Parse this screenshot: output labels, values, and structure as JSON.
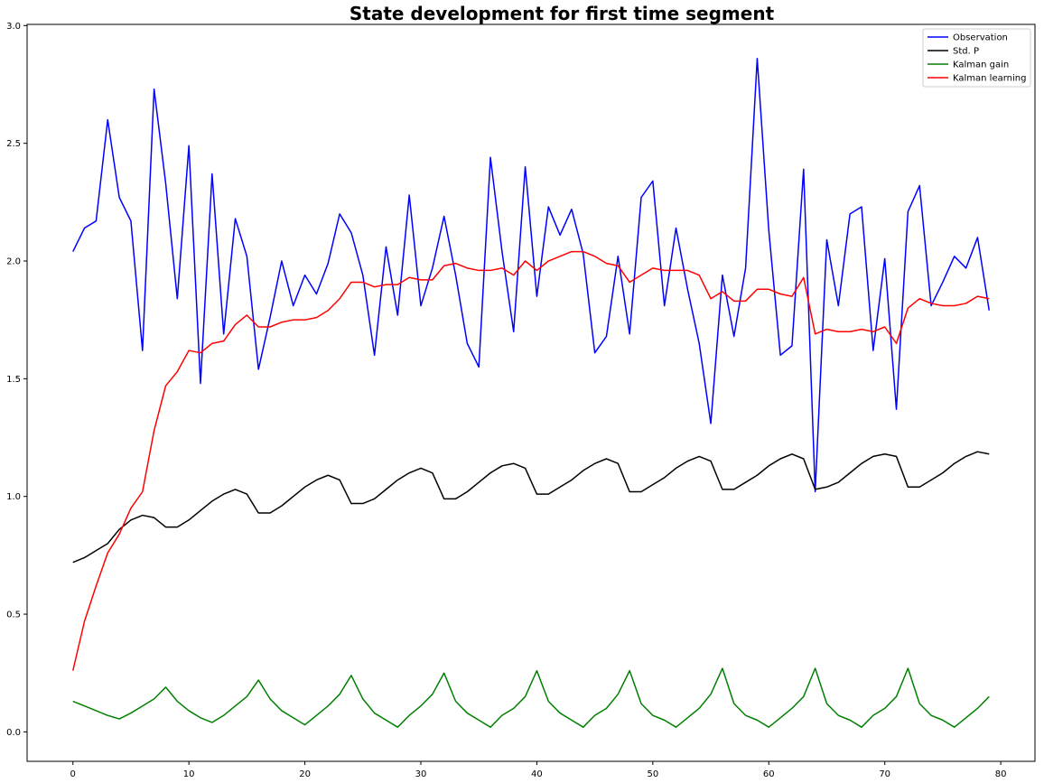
{
  "chart_data": {
    "type": "line",
    "title": "State development for first time segment",
    "xlabel": "",
    "ylabel": "",
    "xlim": [
      -3.95,
      82.95
    ],
    "ylim": [
      -0.125,
      3.005
    ],
    "x_ticks": [
      0,
      10,
      20,
      30,
      40,
      50,
      60,
      70,
      80
    ],
    "x_tick_labels": [
      "0",
      "10",
      "20",
      "30",
      "40",
      "50",
      "60",
      "70",
      "80"
    ],
    "y_ticks": [
      0.0,
      0.5,
      1.0,
      1.5,
      2.0,
      2.5,
      3.0
    ],
    "y_tick_labels": [
      "0.0",
      "0.5",
      "1.0",
      "1.5",
      "2.0",
      "2.5",
      "3.0"
    ],
    "grid": false,
    "legend": {
      "position": "top-right"
    },
    "x": [
      0,
      1,
      2,
      3,
      4,
      5,
      6,
      7,
      8,
      9,
      10,
      11,
      12,
      13,
      14,
      15,
      16,
      17,
      18,
      19,
      20,
      21,
      22,
      23,
      24,
      25,
      26,
      27,
      28,
      29,
      30,
      31,
      32,
      33,
      34,
      35,
      36,
      37,
      38,
      39,
      40,
      41,
      42,
      43,
      44,
      45,
      46,
      47,
      48,
      49,
      50,
      51,
      52,
      53,
      54,
      55,
      56,
      57,
      58,
      59,
      60,
      61,
      62,
      63,
      64,
      65,
      66,
      67,
      68,
      69,
      70,
      71,
      72,
      73,
      74,
      75,
      76,
      77,
      78,
      79
    ],
    "series": [
      {
        "name": "Observation",
        "color": "#0000ff",
        "values": [
          2.04,
          2.14,
          2.17,
          2.6,
          2.27,
          2.17,
          1.62,
          2.73,
          2.33,
          1.84,
          2.49,
          1.48,
          2.37,
          1.69,
          2.18,
          2.02,
          1.54,
          1.76,
          2.0,
          1.81,
          1.94,
          1.86,
          1.99,
          2.2,
          2.12,
          1.94,
          1.6,
          2.06,
          1.77,
          2.28,
          1.81,
          1.97,
          2.19,
          1.94,
          1.65,
          1.55,
          2.44,
          2.04,
          1.7,
          2.4,
          1.85,
          2.23,
          2.11,
          2.22,
          2.03,
          1.61,
          1.68,
          2.02,
          1.69,
          2.27,
          2.34,
          1.81,
          2.14,
          1.88,
          1.65,
          1.31,
          1.94,
          1.68,
          1.97,
          2.86,
          2.13,
          1.6,
          1.64,
          2.39,
          1.02,
          2.09,
          1.81,
          2.2,
          2.23,
          1.62,
          2.01,
          1.37,
          2.21,
          2.32,
          1.81,
          1.91,
          2.02,
          1.97,
          2.1,
          1.79
        ]
      },
      {
        "name": "Std. P",
        "color": "#000000",
        "values": [
          0.72,
          0.74,
          0.77,
          0.8,
          0.86,
          0.9,
          0.92,
          0.91,
          0.87,
          0.87,
          0.9,
          0.94,
          0.98,
          1.01,
          1.03,
          1.01,
          0.93,
          0.93,
          0.96,
          1.0,
          1.04,
          1.07,
          1.09,
          1.07,
          0.97,
          0.97,
          0.99,
          1.03,
          1.07,
          1.1,
          1.12,
          1.1,
          0.99,
          0.99,
          1.02,
          1.06,
          1.1,
          1.13,
          1.14,
          1.12,
          1.01,
          1.01,
          1.04,
          1.07,
          1.11,
          1.14,
          1.16,
          1.14,
          1.02,
          1.02,
          1.05,
          1.08,
          1.12,
          1.15,
          1.17,
          1.15,
          1.03,
          1.03,
          1.06,
          1.09,
          1.13,
          1.16,
          1.18,
          1.16,
          1.03,
          1.04,
          1.06,
          1.1,
          1.14,
          1.17,
          1.18,
          1.17,
          1.04,
          1.04,
          1.07,
          1.1,
          1.14,
          1.17,
          1.19,
          1.18
        ]
      },
      {
        "name": "Kalman gain",
        "color": "#008000",
        "values": [
          0.13,
          0.11,
          0.09,
          0.07,
          0.055,
          0.08,
          0.11,
          0.14,
          0.19,
          0.13,
          0.09,
          0.06,
          0.04,
          0.07,
          0.11,
          0.15,
          0.22,
          0.14,
          0.09,
          0.06,
          0.03,
          0.07,
          0.11,
          0.16,
          0.24,
          0.14,
          0.08,
          0.05,
          0.02,
          0.07,
          0.11,
          0.16,
          0.25,
          0.13,
          0.08,
          0.05,
          0.02,
          0.07,
          0.1,
          0.15,
          0.26,
          0.13,
          0.08,
          0.05,
          0.02,
          0.07,
          0.1,
          0.16,
          0.26,
          0.12,
          0.07,
          0.05,
          0.02,
          0.06,
          0.1,
          0.16,
          0.27,
          0.12,
          0.07,
          0.05,
          0.02,
          0.06,
          0.1,
          0.15,
          0.27,
          0.12,
          0.07,
          0.05,
          0.02,
          0.07,
          0.1,
          0.15,
          0.27,
          0.12,
          0.07,
          0.05,
          0.02,
          0.06,
          0.1,
          0.15
        ]
      },
      {
        "name": "Kalman learning",
        "color": "#ff0000",
        "values": [
          0.26,
          0.47,
          0.62,
          0.76,
          0.84,
          0.95,
          1.02,
          1.28,
          1.47,
          1.53,
          1.62,
          1.61,
          1.65,
          1.66,
          1.73,
          1.77,
          1.72,
          1.72,
          1.74,
          1.75,
          1.75,
          1.76,
          1.79,
          1.84,
          1.91,
          1.91,
          1.89,
          1.9,
          1.9,
          1.93,
          1.92,
          1.92,
          1.98,
          1.99,
          1.97,
          1.96,
          1.96,
          1.97,
          1.94,
          2.0,
          1.96,
          2.0,
          2.02,
          2.04,
          2.04,
          2.02,
          1.99,
          1.98,
          1.91,
          1.94,
          1.97,
          1.96,
          1.96,
          1.96,
          1.94,
          1.84,
          1.87,
          1.83,
          1.83,
          1.88,
          1.88,
          1.86,
          1.85,
          1.93,
          1.69,
          1.71,
          1.7,
          1.7,
          1.71,
          1.7,
          1.72,
          1.65,
          1.8,
          1.84,
          1.82,
          1.81,
          1.81,
          1.82,
          1.85,
          1.84
        ]
      }
    ]
  }
}
